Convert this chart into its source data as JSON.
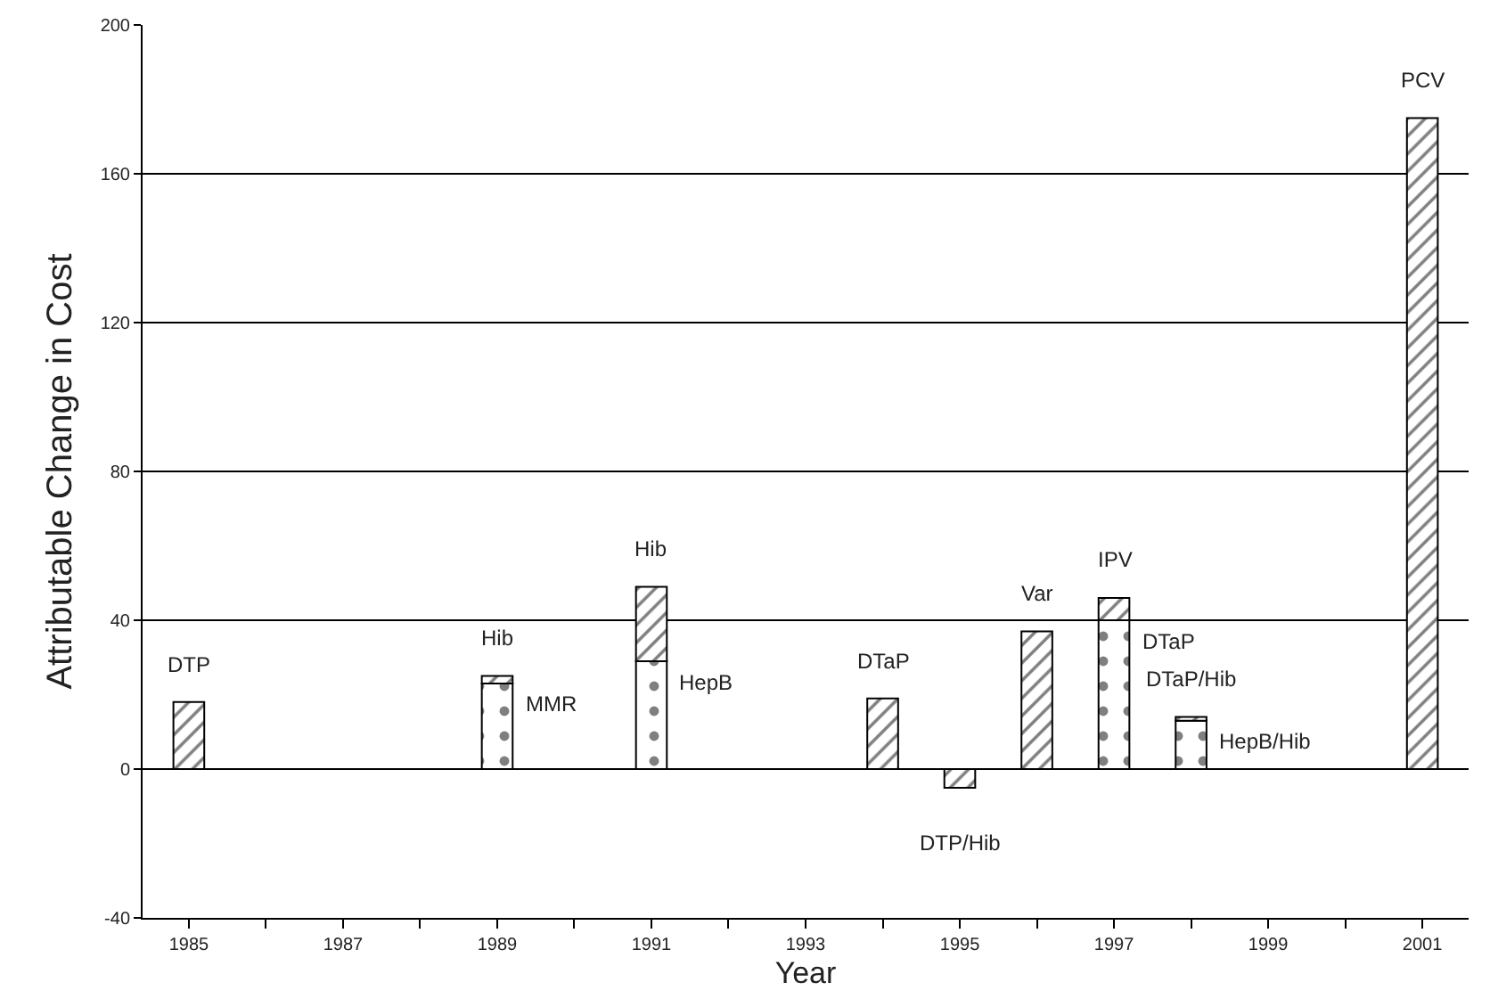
{
  "chart_data": {
    "type": "bar",
    "stacked": true,
    "xlabel": "Year",
    "ylabel": "Attributable Change in Cost",
    "x": [
      1985,
      1986,
      1987,
      1988,
      1989,
      1990,
      1991,
      1992,
      1993,
      1994,
      1995,
      1996,
      1997,
      1998,
      1999,
      2000,
      2001
    ],
    "xlim": [
      1984.4,
      2001.6
    ],
    "xticks": [
      1985,
      {
        "value": 1986,
        "label": null
      },
      1987,
      {
        "value": 1988,
        "label": null
      },
      1989,
      {
        "value": 1990,
        "label": null
      },
      1991,
      {
        "value": 1992,
        "label": null
      },
      1993,
      {
        "value": 1994,
        "label": null
      },
      1995,
      {
        "value": 1996,
        "label": null
      },
      1997,
      {
        "value": 1998,
        "label": null
      },
      1999,
      {
        "value": 2000,
        "label": null
      },
      2001
    ],
    "ylim": [
      -40,
      200
    ],
    "yticks": [
      -40,
      0,
      40,
      80,
      120,
      160,
      200
    ],
    "grid": "y",
    "series": [
      {
        "color": "#000000",
        "values": [
          null,
          null,
          null,
          null,
          23,
          null,
          29,
          null,
          null,
          null,
          null,
          null,
          40,
          13,
          null,
          null,
          null
        ]
      },
      {
        "color": "#000000",
        "values": [
          18,
          null,
          null,
          null,
          2,
          null,
          20,
          null,
          null,
          19,
          -5,
          37,
          6,
          1,
          null,
          null,
          175
        ]
      }
    ],
    "annotations": [
      {
        "text": "DTP",
        "x": 1985,
        "y": 18
      },
      {
        "text": "MMR",
        "x": 1989,
        "y": 23
      },
      {
        "text": "Hib",
        "x": 1989,
        "y": 25
      },
      {
        "text": "Hib",
        "x": 1991,
        "y": 49
      },
      {
        "text": "HepB",
        "x": 1991,
        "y": 29
      },
      {
        "text": "DTaP",
        "x": 1994,
        "y": 19
      },
      {
        "text": "DTP/Hib",
        "x": 1995,
        "y": -5
      },
      {
        "text": "Var",
        "x": 1996,
        "y": 37
      },
      {
        "text": "IPV",
        "x": 1997,
        "y": 46
      },
      {
        "text": "DTaP",
        "x": 1997,
        "y": 40
      },
      {
        "text": "DTaP/Hib",
        "x": 1998,
        "y": 14
      },
      {
        "text": "HepB/Hib",
        "x": 1998,
        "y": 13
      },
      {
        "text": "PCV",
        "x": 2001,
        "y": 175
      }
    ]
  }
}
